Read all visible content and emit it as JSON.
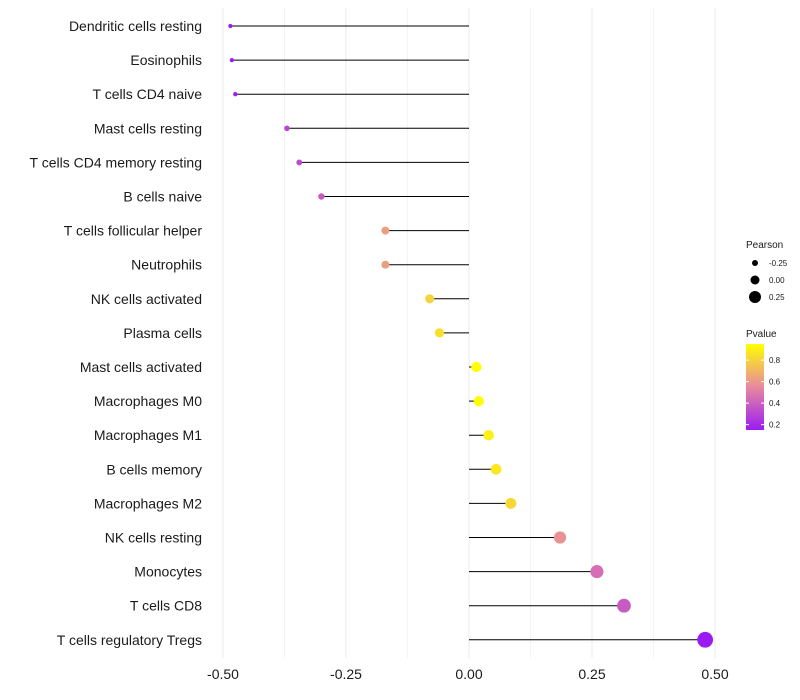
{
  "chart_data": {
    "type": "lollipop",
    "title": "",
    "xlabel": "",
    "ylabel": "",
    "xlim": [
      -0.5,
      0.5
    ],
    "xticks": [
      -0.5,
      -0.25,
      0.0,
      0.25,
      0.5
    ],
    "xtick_labels": [
      "-0.50",
      "-0.25",
      "0.00",
      "0.25",
      "0.50"
    ],
    "grid": true,
    "rows": [
      {
        "label": "Dendritic cells resting",
        "pearson": -0.485,
        "pvalue": 0.15
      },
      {
        "label": "Eosinophils",
        "pearson": -0.482,
        "pvalue": 0.15
      },
      {
        "label": "T cells CD4 naive",
        "pearson": -0.475,
        "pvalue": 0.16
      },
      {
        "label": "Mast cells resting",
        "pearson": -0.37,
        "pvalue": 0.3
      },
      {
        "label": "T cells CD4 memory resting",
        "pearson": -0.345,
        "pvalue": 0.32
      },
      {
        "label": "B cells naive",
        "pearson": -0.3,
        "pvalue": 0.38
      },
      {
        "label": "T cells follicular helper",
        "pearson": -0.17,
        "pvalue": 0.62
      },
      {
        "label": "Neutrophils",
        "pearson": -0.17,
        "pvalue": 0.62
      },
      {
        "label": "NK cells activated",
        "pearson": -0.08,
        "pvalue": 0.8
      },
      {
        "label": "Plasma cells",
        "pearson": -0.06,
        "pvalue": 0.84
      },
      {
        "label": "Mast cells activated",
        "pearson": 0.015,
        "pvalue": 0.96
      },
      {
        "label": "Macrophages M0",
        "pearson": 0.02,
        "pvalue": 0.95
      },
      {
        "label": "Macrophages M1",
        "pearson": 0.04,
        "pvalue": 0.9
      },
      {
        "label": "B cells memory",
        "pearson": 0.055,
        "pvalue": 0.87
      },
      {
        "label": "Macrophages M2",
        "pearson": 0.085,
        "pvalue": 0.82
      },
      {
        "label": "NK cells resting",
        "pearson": 0.185,
        "pvalue": 0.58
      },
      {
        "label": "Monocytes",
        "pearson": 0.26,
        "pvalue": 0.45
      },
      {
        "label": "T cells CD8",
        "pearson": 0.315,
        "pvalue": 0.38
      },
      {
        "label": "T cells regulatory  Tregs",
        "pearson": 0.48,
        "pvalue": 0.13
      }
    ],
    "size_legend": {
      "title": "Pearson",
      "entries": [
        {
          "label": "-0.25",
          "value": -0.25
        },
        {
          "label": "0.00",
          "value": 0.0
        },
        {
          "label": "0.25",
          "value": 0.25
        }
      ]
    },
    "color_legend": {
      "title": "Pvalue",
      "low_color": "#9b1cf2",
      "mid_color": "#e8899f",
      "high_color": "#ffff00",
      "range": [
        0.15,
        0.95
      ],
      "ticks": [
        {
          "label": "0.8",
          "value": 0.8
        },
        {
          "label": "0.6",
          "value": 0.6
        },
        {
          "label": "0.4",
          "value": 0.4
        },
        {
          "label": "0.2",
          "value": 0.2
        }
      ]
    },
    "colors": {
      "grid": "#ebebeb",
      "stem": "#000000"
    }
  }
}
